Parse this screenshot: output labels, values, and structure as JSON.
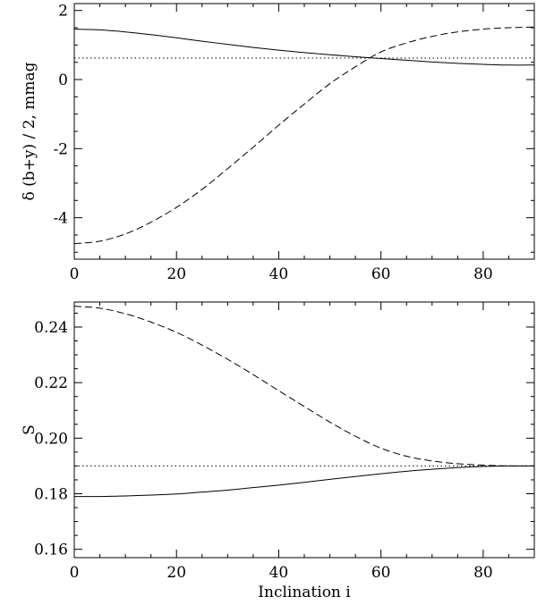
{
  "chart_data": [
    {
      "type": "line",
      "title": "",
      "xlabel": "",
      "ylabel": "δ (b+y) / 2, mmag",
      "xlim": [
        0,
        90
      ],
      "ylim": [
        -5.2,
        2.2
      ],
      "x_ticks": [
        0,
        20,
        40,
        60,
        80
      ],
      "x_tick_labels": [
        "0",
        "20",
        "40",
        "60",
        "80"
      ],
      "y_ticks": [
        -4,
        -2,
        0,
        2
      ],
      "y_tick_labels": [
        "-4",
        "-2",
        "0",
        "2"
      ],
      "series": [
        {
          "style": "solid",
          "x": [
            0,
            5,
            10,
            15,
            20,
            25,
            30,
            35,
            40,
            45,
            50,
            55,
            60,
            65,
            70,
            75,
            80,
            85,
            90
          ],
          "y": [
            1.46,
            1.44,
            1.38,
            1.3,
            1.21,
            1.11,
            1.02,
            0.93,
            0.85,
            0.78,
            0.72,
            0.66,
            0.61,
            0.56,
            0.51,
            0.47,
            0.44,
            0.42,
            0.42
          ]
        },
        {
          "style": "dashed",
          "x": [
            0,
            5,
            10,
            15,
            20,
            25,
            30,
            35,
            40,
            45,
            50,
            55,
            60,
            65,
            70,
            75,
            80,
            85,
            90
          ],
          "y": [
            -4.75,
            -4.68,
            -4.47,
            -4.13,
            -3.7,
            -3.18,
            -2.58,
            -1.96,
            -1.32,
            -0.71,
            -0.12,
            0.37,
            0.8,
            1.06,
            1.25,
            1.38,
            1.46,
            1.5,
            1.52
          ]
        },
        {
          "style": "dotted",
          "x": [
            0,
            90
          ],
          "y": [
            0.62,
            0.62
          ]
        }
      ]
    },
    {
      "type": "line",
      "title": "",
      "xlabel": "Inclination i",
      "ylabel": "S",
      "xlim": [
        0,
        90
      ],
      "ylim": [
        0.157,
        0.249
      ],
      "x_ticks": [
        0,
        20,
        40,
        60,
        80
      ],
      "x_tick_labels": [
        "0",
        "20",
        "40",
        "60",
        "80"
      ],
      "y_ticks": [
        0.16,
        0.18,
        0.2,
        0.22,
        0.24
      ],
      "y_tick_labels": [
        "0.16",
        "0.18",
        "0.20",
        "0.22",
        "0.24"
      ],
      "series": [
        {
          "style": "solid",
          "x": [
            0,
            5,
            10,
            15,
            20,
            25,
            30,
            35,
            40,
            45,
            50,
            55,
            60,
            65,
            70,
            75,
            80,
            85,
            90
          ],
          "y": [
            0.179,
            0.179,
            0.1792,
            0.1795,
            0.1799,
            0.1806,
            0.1813,
            0.1822,
            0.1831,
            0.1841,
            0.1852,
            0.1862,
            0.1872,
            0.1881,
            0.1888,
            0.1894,
            0.1898,
            0.19,
            0.19
          ]
        },
        {
          "style": "dashed",
          "x": [
            0,
            5,
            10,
            15,
            20,
            25,
            30,
            35,
            40,
            45,
            50,
            55,
            60,
            65,
            70,
            75,
            80,
            85,
            90
          ],
          "y": [
            0.2475,
            0.2468,
            0.2448,
            0.2418,
            0.2381,
            0.2335,
            0.2284,
            0.2229,
            0.2171,
            0.2114,
            0.2058,
            0.2007,
            0.1964,
            0.1935,
            0.1918,
            0.1908,
            0.1903,
            0.19,
            0.19
          ]
        },
        {
          "style": "dotted",
          "x": [
            0,
            90
          ],
          "y": [
            0.19,
            0.19
          ]
        }
      ]
    }
  ]
}
